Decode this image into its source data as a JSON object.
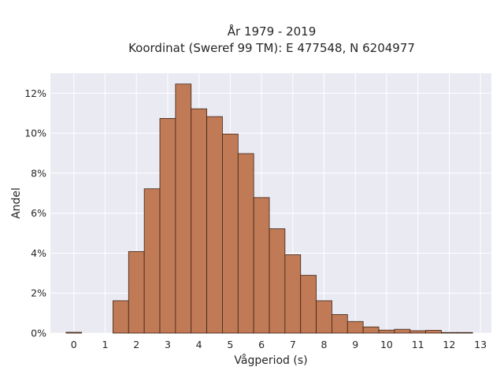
{
  "chart_data": {
    "type": "bar",
    "title": "År 1979 - 2019",
    "subtitle": "Koordinat (Sweref 99 TM): E 477548, N 6204977",
    "xlabel": "Vågperiod (s)",
    "ylabel": "Andel",
    "bin_width": 0.5,
    "bin_starts": [
      -0.25,
      0.25,
      0.75,
      1.25,
      1.75,
      2.25,
      2.75,
      3.25,
      3.75,
      4.25,
      4.75,
      5.25,
      5.75,
      6.25,
      6.75,
      7.25,
      7.75,
      8.25,
      8.75,
      9.25,
      9.75,
      10.25,
      10.75,
      11.25,
      11.75,
      12.25,
      12.75
    ],
    "values": [
      0.04,
      0.0,
      0.0,
      1.62,
      4.08,
      7.22,
      10.74,
      12.46,
      11.22,
      10.83,
      9.96,
      8.98,
      6.78,
      5.22,
      3.92,
      2.89,
      1.62,
      0.93,
      0.58,
      0.31,
      0.15,
      0.19,
      0.12,
      0.14,
      0.03,
      0.03,
      0.0
    ],
    "xlim": [
      -0.75,
      13.35
    ],
    "ylim": [
      0,
      13.0
    ],
    "xticks": [
      "0",
      "1",
      "2",
      "3",
      "4",
      "5",
      "6",
      "7",
      "8",
      "9",
      "10",
      "11",
      "12",
      "13"
    ],
    "yticks": [
      "0%",
      "2%",
      "4%",
      "6%",
      "8%",
      "10%",
      "12%"
    ],
    "ytick_values": [
      0,
      2,
      4,
      6,
      8,
      10,
      12
    ],
    "grid": true,
    "legend": "none",
    "colors": {
      "bar_fill": "#c07a55",
      "bar_edge": "#3d2418",
      "plot_background": "#eaeaf2",
      "grid": "#ffffff",
      "text": "#262626"
    }
  }
}
